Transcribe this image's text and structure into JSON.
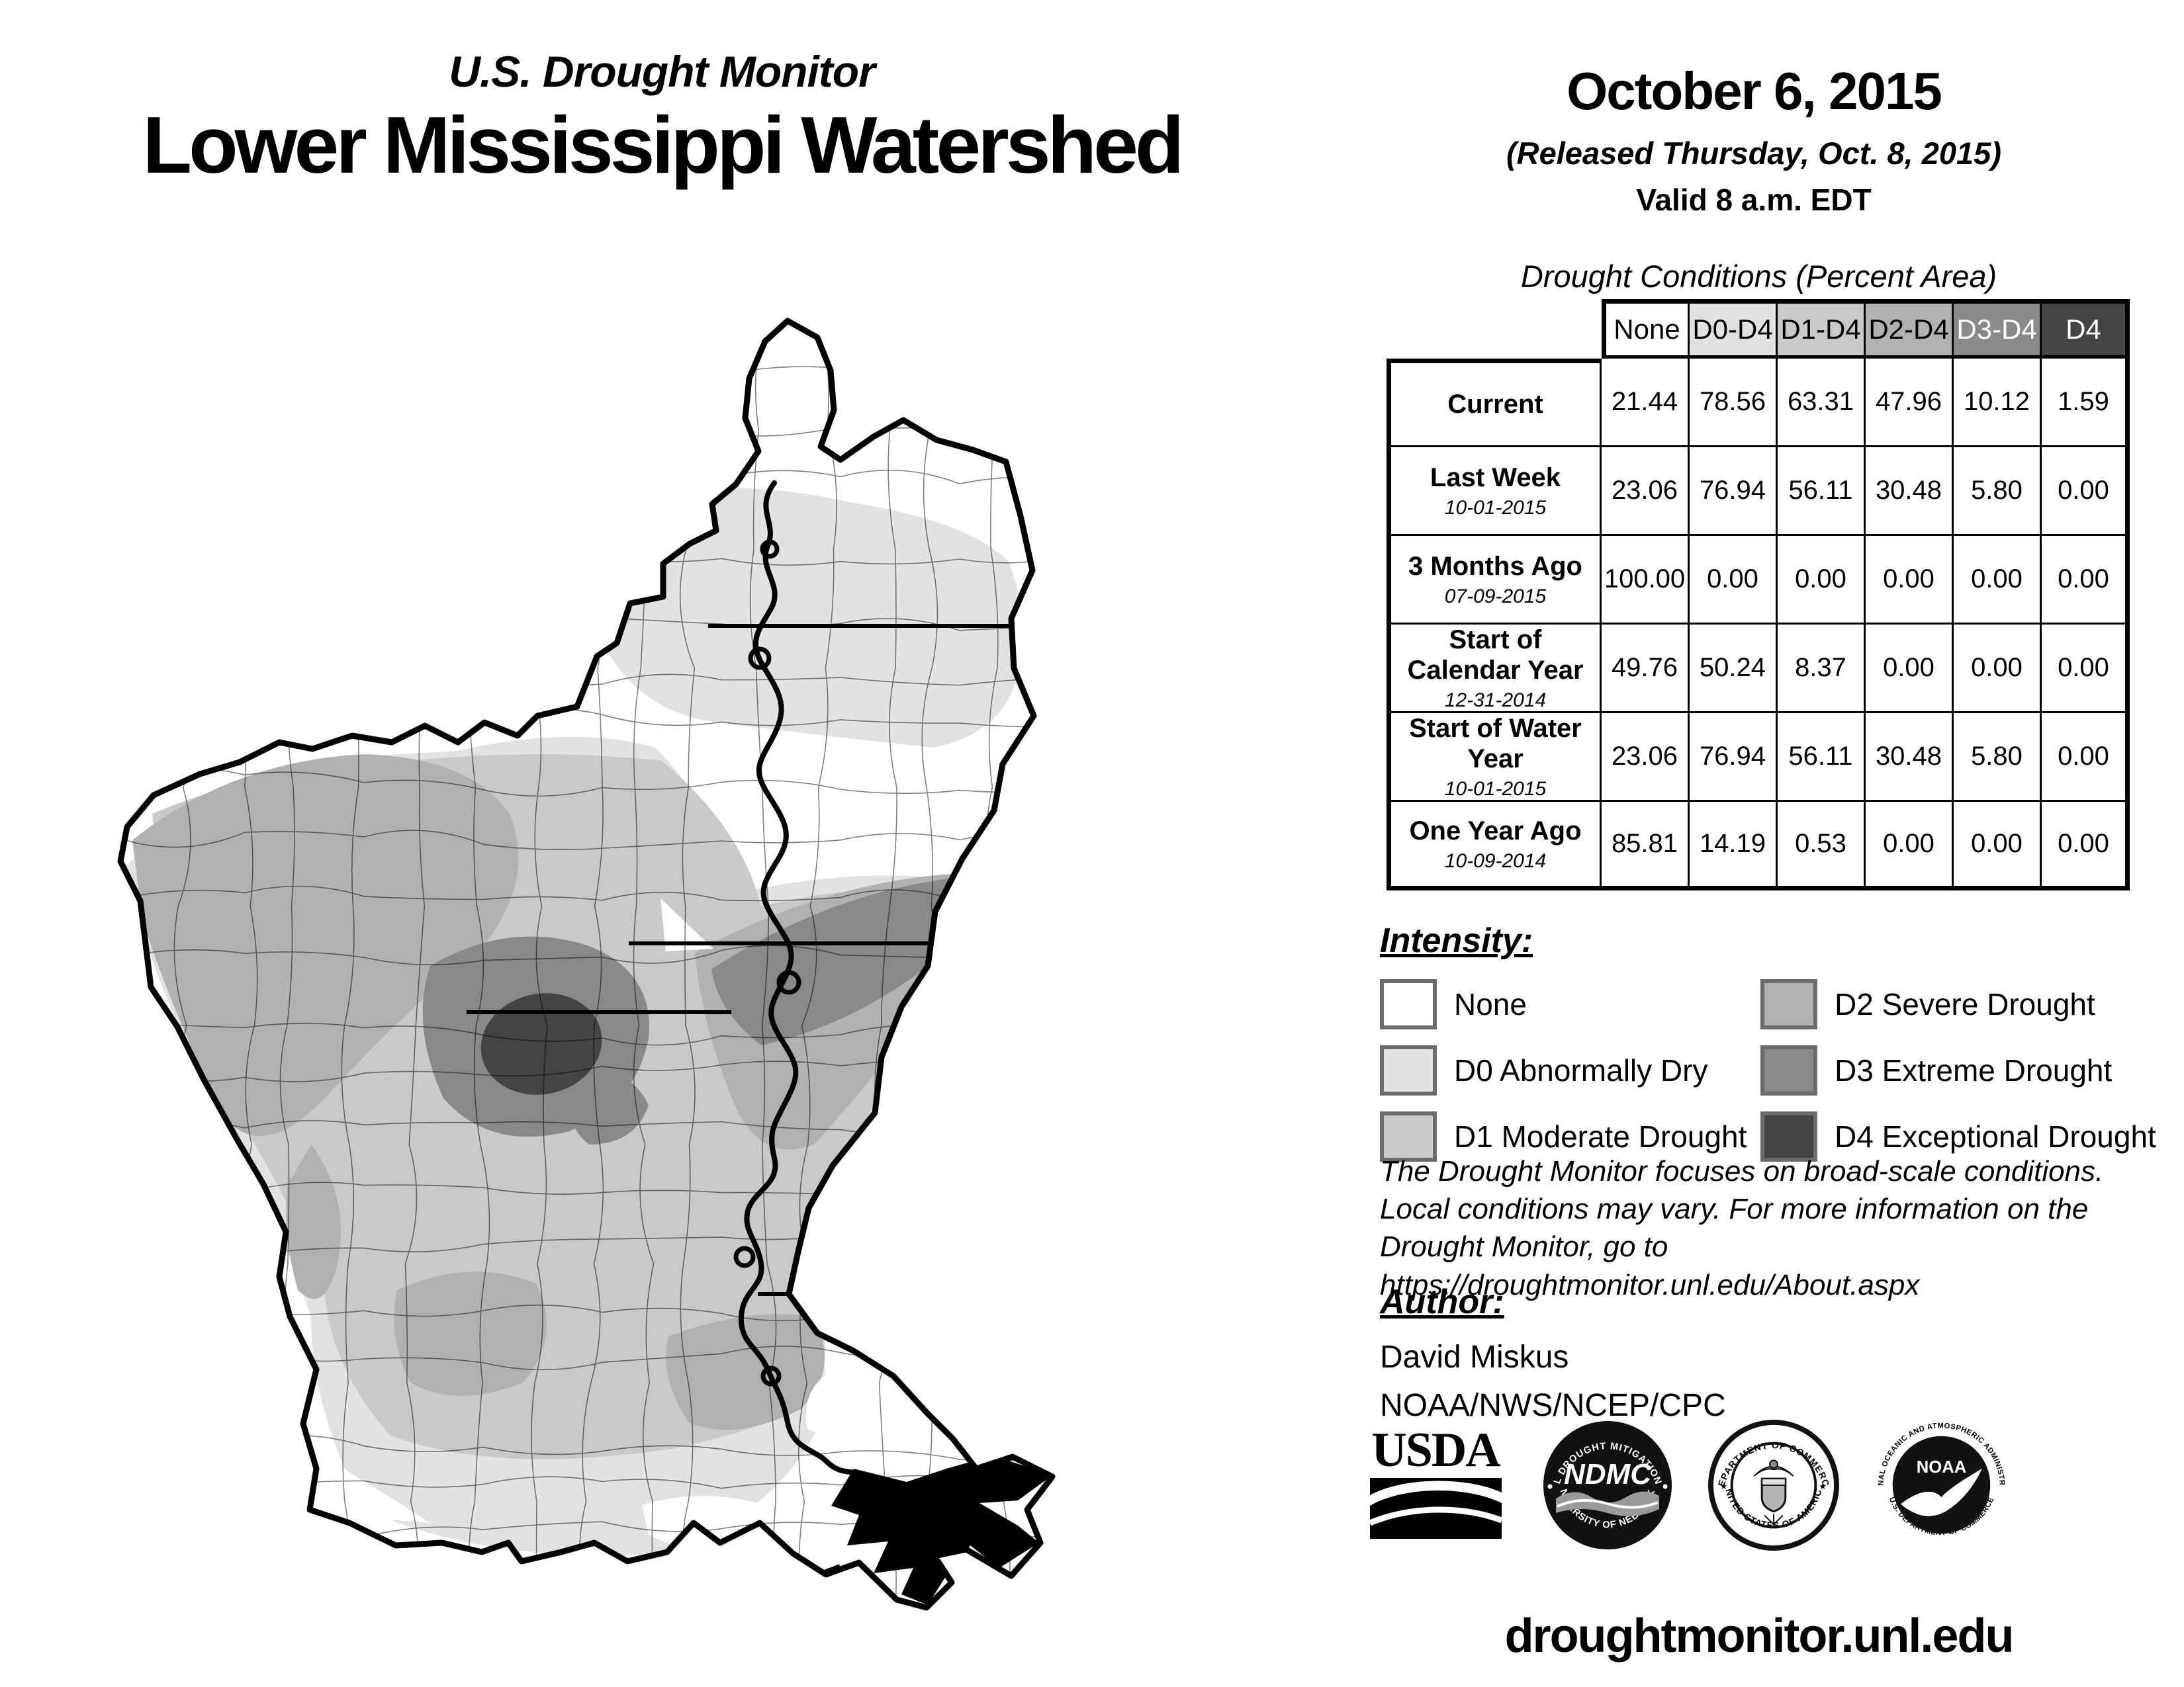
{
  "header": {
    "program": "U.S. Drought Monitor",
    "region": "Lower Mississippi Watershed"
  },
  "date_block": {
    "date": "October 6, 2015",
    "released": "(Released Thursday, Oct. 8, 2015)",
    "valid": "Valid 8 a.m. EDT"
  },
  "table": {
    "title": "Drought Conditions (Percent Area)",
    "columns": [
      {
        "label": "None",
        "bg": "#ffffff",
        "fg": "#000000"
      },
      {
        "label": "D0-D4",
        "bg": "#e2e2e2",
        "fg": "#000000"
      },
      {
        "label": "D1-D4",
        "bg": "#c9c9c9",
        "fg": "#000000"
      },
      {
        "label": "D2-D4",
        "bg": "#b1b1b1",
        "fg": "#000000"
      },
      {
        "label": "D3-D4",
        "bg": "#898989",
        "fg": "#ffffff"
      },
      {
        "label": "D4",
        "bg": "#444444",
        "fg": "#ffffff"
      }
    ],
    "rows": [
      {
        "label": "Current",
        "date": "",
        "values": [
          "21.44",
          "78.56",
          "63.31",
          "47.96",
          "10.12",
          "1.59"
        ]
      },
      {
        "label": "Last Week",
        "date": "10-01-2015",
        "values": [
          "23.06",
          "76.94",
          "56.11",
          "30.48",
          "5.80",
          "0.00"
        ]
      },
      {
        "label": "3 Months Ago",
        "date": "07-09-2015",
        "values": [
          "100.00",
          "0.00",
          "0.00",
          "0.00",
          "0.00",
          "0.00"
        ]
      },
      {
        "label": "Start of Calendar Year",
        "date": "12-31-2014",
        "values": [
          "49.76",
          "50.24",
          "8.37",
          "0.00",
          "0.00",
          "0.00"
        ]
      },
      {
        "label": "Start of Water Year",
        "date": "10-01-2015",
        "values": [
          "23.06",
          "76.94",
          "56.11",
          "30.48",
          "5.80",
          "0.00"
        ]
      },
      {
        "label": "One Year Ago",
        "date": "10-09-2014",
        "values": [
          "85.81",
          "14.19",
          "0.53",
          "0.00",
          "0.00",
          "0.00"
        ]
      }
    ]
  },
  "legend": {
    "heading": "Intensity:",
    "items": [
      {
        "label": "None",
        "color": "#ffffff"
      },
      {
        "label": "D0 Abnormally Dry",
        "color": "#e2e2e2"
      },
      {
        "label": "D1 Moderate Drought",
        "color": "#c9c9c9"
      },
      {
        "label": "D2 Severe Drought",
        "color": "#b1b1b1"
      },
      {
        "label": "D3 Extreme Drought",
        "color": "#898989"
      },
      {
        "label": "D4 Exceptional Drought",
        "color": "#444444"
      }
    ]
  },
  "disclaimer": {
    "lines": [
      "The Drought Monitor focuses on broad-scale conditions.",
      "Local conditions may vary. For more information on the",
      "Drought Monitor, go to https://droughtmonitor.unl.edu/About.aspx"
    ]
  },
  "author": {
    "heading": "Author:",
    "name": "David Miskus",
    "org": "NOAA/NWS/NCEP/CPC"
  },
  "footer": {
    "url": "droughtmonitor.unl.edu"
  },
  "logos": {
    "usda": {
      "label": "USDA"
    },
    "ndmc": {
      "top": "NATIONAL DROUGHT MITIGATION CENTER",
      "center": "NDMC",
      "bottom": "UNIVERSITY OF NEBRASKA"
    },
    "doc": {
      "top": "DEPARTMENT OF COMMERCE",
      "bottom": "UNITED STATES OF AMERICA"
    },
    "noaa": {
      "top": "NATIONAL OCEANIC AND ATMOSPHERIC ADMINISTRATION",
      "center": "NOAA",
      "bottom": "U.S. DEPARTMENT OF COMMERCE"
    }
  }
}
